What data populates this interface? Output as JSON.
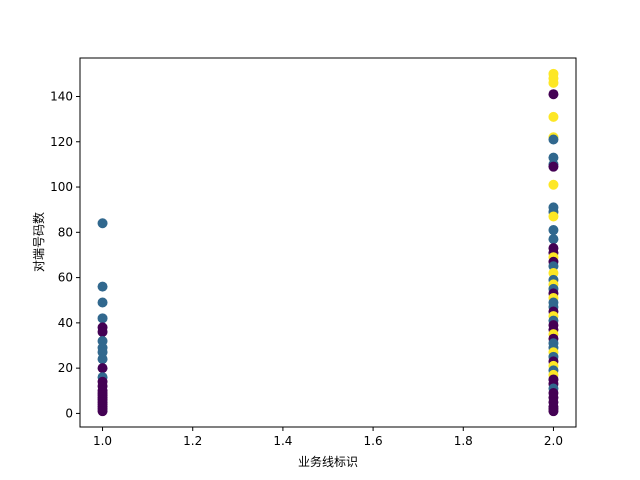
{
  "chart_data": {
    "type": "scatter",
    "title": "",
    "xlabel": "业务线标识",
    "ylabel": "对端号码数",
    "xlim": [
      0.95,
      2.05
    ],
    "ylim": [
      -6,
      157
    ],
    "x_ticks": [
      1.0,
      1.2,
      1.4,
      1.6,
      1.8,
      2.0
    ],
    "x_tick_labels": [
      "1.0",
      "1.2",
      "1.4",
      "1.6",
      "1.8",
      "2.0"
    ],
    "y_ticks": [
      0,
      20,
      40,
      60,
      80,
      100,
      120,
      140
    ],
    "y_tick_labels": [
      "0",
      "20",
      "40",
      "60",
      "80",
      "100",
      "120",
      "140"
    ],
    "grid": false,
    "legend": "none",
    "colors": {
      "purple": "#440154",
      "teal": "#31688e",
      "yellow": "#fde725"
    },
    "points": [
      {
        "x": 1.0,
        "y": 84,
        "color": "teal"
      },
      {
        "x": 1.0,
        "y": 56,
        "color": "teal"
      },
      {
        "x": 1.0,
        "y": 49,
        "color": "teal"
      },
      {
        "x": 1.0,
        "y": 42,
        "color": "teal"
      },
      {
        "x": 1.0,
        "y": 38,
        "color": "purple"
      },
      {
        "x": 1.0,
        "y": 36,
        "color": "purple"
      },
      {
        "x": 1.0,
        "y": 32,
        "color": "teal"
      },
      {
        "x": 1.0,
        "y": 29,
        "color": "teal"
      },
      {
        "x": 1.0,
        "y": 27,
        "color": "teal"
      },
      {
        "x": 1.0,
        "y": 24,
        "color": "teal"
      },
      {
        "x": 1.0,
        "y": 20,
        "color": "purple"
      },
      {
        "x": 1.0,
        "y": 16,
        "color": "teal"
      },
      {
        "x": 1.0,
        "y": 14,
        "color": "purple"
      },
      {
        "x": 1.0,
        "y": 12,
        "color": "purple"
      },
      {
        "x": 1.0,
        "y": 10,
        "color": "purple"
      },
      {
        "x": 1.0,
        "y": 9,
        "color": "purple"
      },
      {
        "x": 1.0,
        "y": 8,
        "color": "purple"
      },
      {
        "x": 1.0,
        "y": 7,
        "color": "purple"
      },
      {
        "x": 1.0,
        "y": 6,
        "color": "purple"
      },
      {
        "x": 1.0,
        "y": 5,
        "color": "purple"
      },
      {
        "x": 1.0,
        "y": 4,
        "color": "purple"
      },
      {
        "x": 1.0,
        "y": 3,
        "color": "purple"
      },
      {
        "x": 1.0,
        "y": 2,
        "color": "purple"
      },
      {
        "x": 1.0,
        "y": 1,
        "color": "purple"
      },
      {
        "x": 2.0,
        "y": 150,
        "color": "yellow"
      },
      {
        "x": 2.0,
        "y": 148,
        "color": "yellow"
      },
      {
        "x": 2.0,
        "y": 146,
        "color": "yellow"
      },
      {
        "x": 2.0,
        "y": 141,
        "color": "purple"
      },
      {
        "x": 2.0,
        "y": 131,
        "color": "yellow"
      },
      {
        "x": 2.0,
        "y": 122,
        "color": "yellow"
      },
      {
        "x": 2.0,
        "y": 121,
        "color": "teal"
      },
      {
        "x": 2.0,
        "y": 113,
        "color": "teal"
      },
      {
        "x": 2.0,
        "y": 110,
        "color": "teal"
      },
      {
        "x": 2.0,
        "y": 109,
        "color": "purple"
      },
      {
        "x": 2.0,
        "y": 101,
        "color": "yellow"
      },
      {
        "x": 2.0,
        "y": 91,
        "color": "teal"
      },
      {
        "x": 2.0,
        "y": 89,
        "color": "teal"
      },
      {
        "x": 2.0,
        "y": 87,
        "color": "yellow"
      },
      {
        "x": 2.0,
        "y": 81,
        "color": "teal"
      },
      {
        "x": 2.0,
        "y": 77,
        "color": "teal"
      },
      {
        "x": 2.0,
        "y": 73,
        "color": "purple"
      },
      {
        "x": 2.0,
        "y": 71,
        "color": "purple"
      },
      {
        "x": 2.0,
        "y": 69,
        "color": "yellow"
      },
      {
        "x": 2.0,
        "y": 67,
        "color": "purple"
      },
      {
        "x": 2.0,
        "y": 65,
        "color": "teal"
      },
      {
        "x": 2.0,
        "y": 62,
        "color": "yellow"
      },
      {
        "x": 2.0,
        "y": 59,
        "color": "teal"
      },
      {
        "x": 2.0,
        "y": 57,
        "color": "yellow"
      },
      {
        "x": 2.0,
        "y": 55,
        "color": "teal"
      },
      {
        "x": 2.0,
        "y": 53,
        "color": "purple"
      },
      {
        "x": 2.0,
        "y": 51,
        "color": "yellow"
      },
      {
        "x": 2.0,
        "y": 49,
        "color": "teal"
      },
      {
        "x": 2.0,
        "y": 47,
        "color": "teal"
      },
      {
        "x": 2.0,
        "y": 45,
        "color": "purple"
      },
      {
        "x": 2.0,
        "y": 43,
        "color": "yellow"
      },
      {
        "x": 2.0,
        "y": 41,
        "color": "teal"
      },
      {
        "x": 2.0,
        "y": 39,
        "color": "purple"
      },
      {
        "x": 2.0,
        "y": 37,
        "color": "purple"
      },
      {
        "x": 2.0,
        "y": 35,
        "color": "yellow"
      },
      {
        "x": 2.0,
        "y": 33,
        "color": "purple"
      },
      {
        "x": 2.0,
        "y": 31,
        "color": "teal"
      },
      {
        "x": 2.0,
        "y": 29,
        "color": "teal"
      },
      {
        "x": 2.0,
        "y": 27,
        "color": "yellow"
      },
      {
        "x": 2.0,
        "y": 25,
        "color": "teal"
      },
      {
        "x": 2.0,
        "y": 23,
        "color": "purple"
      },
      {
        "x": 2.0,
        "y": 21,
        "color": "yellow"
      },
      {
        "x": 2.0,
        "y": 19,
        "color": "teal"
      },
      {
        "x": 2.0,
        "y": 17,
        "color": "yellow"
      },
      {
        "x": 2.0,
        "y": 15,
        "color": "purple"
      },
      {
        "x": 2.0,
        "y": 13,
        "color": "purple"
      },
      {
        "x": 2.0,
        "y": 11,
        "color": "teal"
      },
      {
        "x": 2.0,
        "y": 9,
        "color": "purple"
      },
      {
        "x": 2.0,
        "y": 7,
        "color": "purple"
      },
      {
        "x": 2.0,
        "y": 5,
        "color": "purple"
      },
      {
        "x": 2.0,
        "y": 3,
        "color": "purple"
      },
      {
        "x": 2.0,
        "y": 2,
        "color": "purple"
      },
      {
        "x": 2.0,
        "y": 1,
        "color": "purple"
      }
    ]
  }
}
